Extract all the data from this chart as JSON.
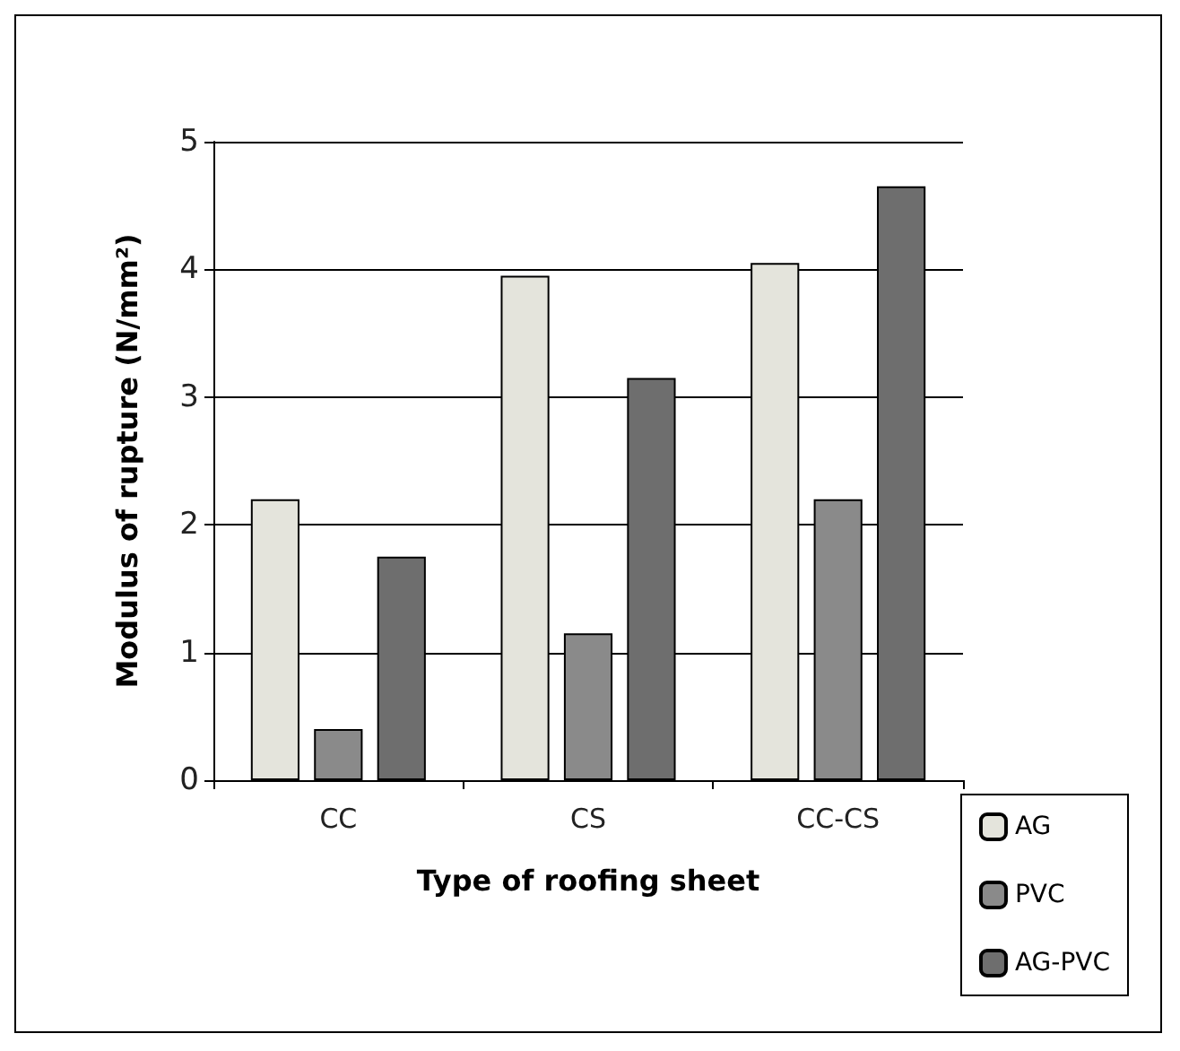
{
  "chart_data": {
    "type": "bar",
    "xlabel": "Type of roofing sheet",
    "ylabel": "Modulus of rupture (N/mm²)",
    "categories": [
      "CC",
      "CS",
      "CC-CS"
    ],
    "series": [
      {
        "name": "AG",
        "color": "#e4e4dc",
        "values": [
          2.2,
          3.95,
          4.05
        ]
      },
      {
        "name": "PVC",
        "color": "#8a8a8a",
        "values": [
          0.4,
          1.15,
          2.2
        ]
      },
      {
        "name": "AG-PVC",
        "color": "#6e6e6e",
        "values": [
          1.75,
          3.15,
          4.65
        ]
      }
    ],
    "ylim": [
      0,
      5
    ],
    "yticks": [
      0,
      1,
      2,
      3,
      4,
      5
    ],
    "grid": "y",
    "legend": "bottom right"
  }
}
